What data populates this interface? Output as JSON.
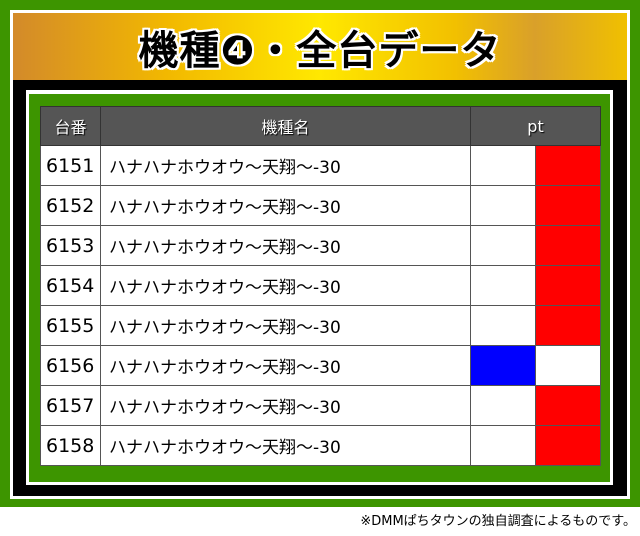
{
  "title": "機種❹・全台データ",
  "table": {
    "headers": [
      "台番",
      "機種名",
      "pt"
    ],
    "rows": [
      {
        "number": "6151",
        "machine": "ハナハナホウオウ～天翔～-30",
        "pt": "positive"
      },
      {
        "number": "6152",
        "machine": "ハナハナホウオウ～天翔～-30",
        "pt": "positive"
      },
      {
        "number": "6153",
        "machine": "ハナハナホウオウ～天翔～-30",
        "pt": "positive"
      },
      {
        "number": "6154",
        "machine": "ハナハナホウオウ～天翔～-30",
        "pt": "positive"
      },
      {
        "number": "6155",
        "machine": "ハナハナホウオウ～天翔～-30",
        "pt": "positive"
      },
      {
        "number": "6156",
        "machine": "ハナハナホウオウ～天翔～-30",
        "pt": "negative"
      },
      {
        "number": "6157",
        "machine": "ハナハナホウオウ～天翔～-30",
        "pt": "positive"
      },
      {
        "number": "6158",
        "machine": "ハナハナホウオウ～天翔～-30",
        "pt": "positive"
      }
    ]
  },
  "colors": {
    "positive": "#ff0000",
    "negative": "#0000ff",
    "frame": "#3d9500"
  },
  "footer": "※DMMぱちタウンの独自調査によるものです。"
}
